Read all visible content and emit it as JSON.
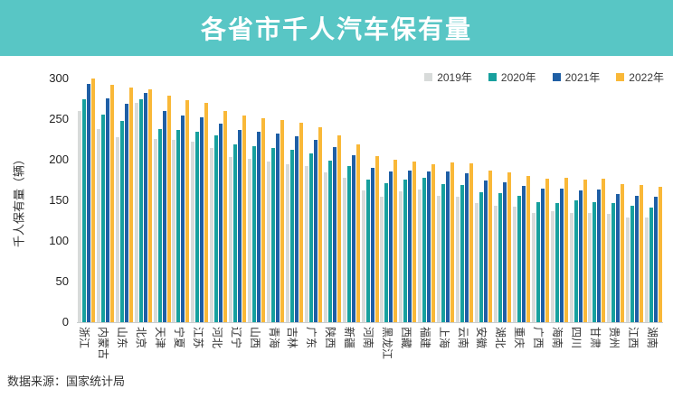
{
  "header": {
    "title": "各省市千人汽车保有量",
    "bg_color": "#58C6C5",
    "text_color": "#FFFFFF"
  },
  "footer": {
    "source_text": "数据来源：国家统计局"
  },
  "chart_data": {
    "type": "bar",
    "title": "各省市千人汽车保有量",
    "xlabel": "",
    "ylabel": "千人保有量（辆）",
    "ylim": [
      0,
      300
    ],
    "ytick_step": 50,
    "grid": false,
    "legend_position": "top-right",
    "categories": [
      "浙江",
      "内蒙古",
      "山东",
      "北京",
      "天津",
      "宁夏",
      "江苏",
      "河北",
      "辽宁",
      "山西",
      "青海",
      "吉林",
      "广东",
      "陕西",
      "新疆",
      "河南",
      "黑龙江",
      "西藏",
      "福建",
      "上海",
      "云南",
      "安徽",
      "湖北",
      "重庆",
      "广西",
      "海南",
      "四川",
      "甘肃",
      "贵州",
      "江西",
      "湖南"
    ],
    "series": [
      {
        "name": "2019年",
        "color": "#D8DBDA",
        "values": [
          260,
          238,
          228,
          270,
          226,
          224,
          222,
          215,
          203,
          201,
          198,
          195,
          192,
          185,
          178,
          162,
          155,
          161,
          163,
          156,
          154,
          147,
          143,
          142,
          134,
          137,
          135,
          134,
          133,
          129,
          129
        ]
      },
      {
        "name": "2020年",
        "color": "#17A09E",
        "values": [
          275,
          256,
          248,
          275,
          238,
          237,
          235,
          230,
          219,
          217,
          215,
          212,
          208,
          199,
          192,
          176,
          171,
          176,
          178,
          170,
          169,
          160,
          159,
          156,
          148,
          147,
          150,
          148,
          147,
          143,
          141
        ]
      },
      {
        "name": "2021年",
        "color": "#1F5FA5",
        "values": [
          293,
          276,
          269,
          282,
          260,
          254,
          252,
          245,
          237,
          235,
          232,
          229,
          225,
          216,
          206,
          190,
          186,
          187,
          186,
          186,
          183,
          174,
          172,
          168,
          164,
          164,
          162,
          163,
          158,
          156,
          155
        ]
      },
      {
        "name": "2022年",
        "color": "#F9B838",
        "values": [
          300,
          292,
          289,
          287,
          279,
          273,
          270,
          260,
          254,
          251,
          249,
          246,
          240,
          230,
          219,
          205,
          200,
          198,
          195,
          197,
          196,
          187,
          184,
          180,
          177,
          178,
          176,
          177,
          170,
          169,
          167
        ]
      }
    ]
  }
}
